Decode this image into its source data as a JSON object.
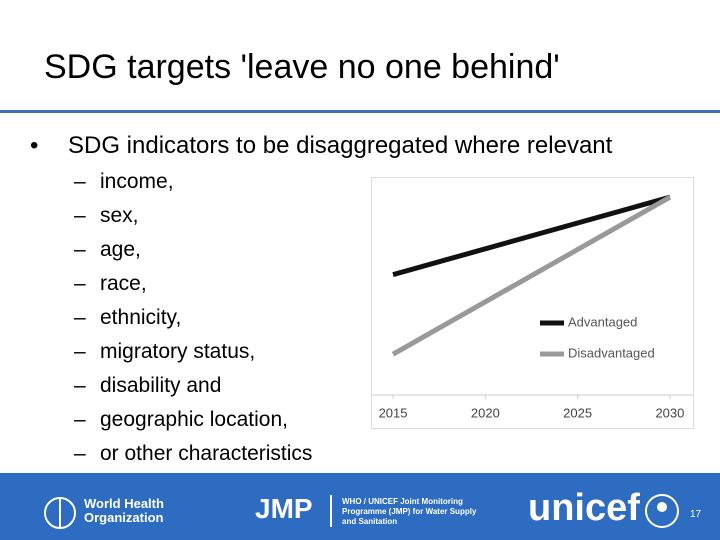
{
  "header": {
    "title": "SDG targets 'leave no one behind'"
  },
  "bullet": "SDG indicators to be disaggregated where relevant",
  "sub_bullets": [
    "income,",
    "sex,",
    "age,",
    "race,",
    "ethnicity,",
    "migratory status,",
    "disability and",
    "geographic location,",
    "or other characteristics"
  ],
  "chart_data": {
    "type": "line",
    "x": [
      2015,
      2030
    ],
    "xlim": [
      2013.86,
      2031.25
    ],
    "xticks": [
      2015,
      2020,
      2025,
      2030
    ],
    "ylim": [
      0,
      100
    ],
    "legend": "right",
    "series": [
      {
        "name": "Advantaged",
        "color": "#111111",
        "values": [
          56,
          92
        ]
      },
      {
        "name": "Disadvantaged",
        "color": "#999999",
        "values": [
          19,
          92
        ]
      }
    ]
  },
  "footer": {
    "who": [
      "World Health",
      "Organization"
    ],
    "jmp": "JMP",
    "jmp_desc": [
      "WHO / UNICEF Joint Monitoring",
      "Programme (JMP) for Water Supply",
      "and Sanitation"
    ],
    "unicef": "unicef",
    "page": "17"
  }
}
